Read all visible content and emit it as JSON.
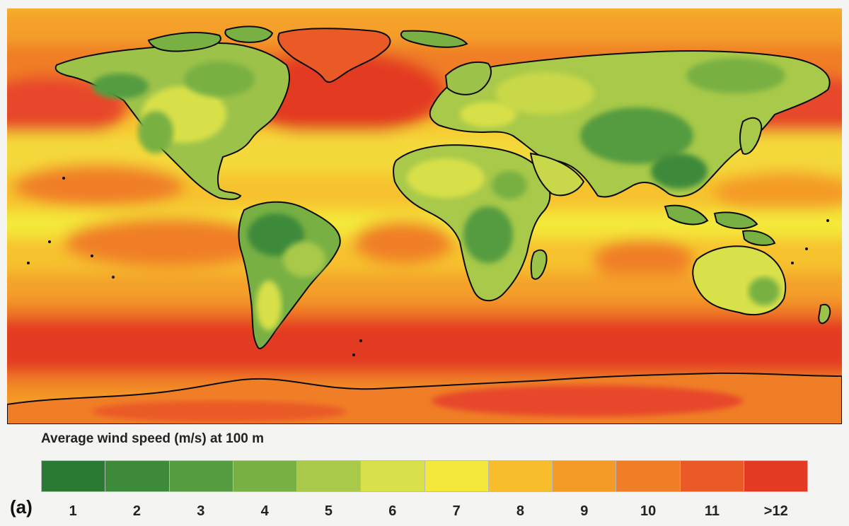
{
  "legend": {
    "title": "Average wind speed (m/s) at 100 m",
    "items": [
      {
        "label": "1",
        "color": "#2b7a33"
      },
      {
        "label": "2",
        "color": "#3c8a3a"
      },
      {
        "label": "3",
        "color": "#559b3f"
      },
      {
        "label": "4",
        "color": "#78b043"
      },
      {
        "label": "5",
        "color": "#a8c949"
      },
      {
        "label": "6",
        "color": "#d8e04a"
      },
      {
        "label": "7",
        "color": "#f4e93a"
      },
      {
        "label": "8",
        "color": "#f7bd2a"
      },
      {
        "label": "9",
        "color": "#f49b27"
      },
      {
        "label": "10",
        "color": "#f07e26"
      },
      {
        "label": "11",
        "color": "#ea5a26"
      },
      {
        "label": ">12",
        "color": "#e33a24"
      }
    ]
  },
  "panel_label": "(a)",
  "map": {
    "ocean_color": "#f6c22e",
    "coastline_color": "#0b0b0b"
  }
}
